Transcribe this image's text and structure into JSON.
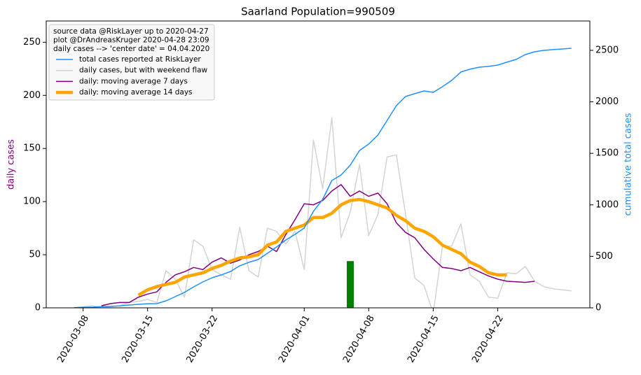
{
  "chart_data": {
    "type": "line",
    "title": "Saarland Population=990509",
    "ylabel": "daily cases",
    "ylabel_color": "#800080",
    "y2label": "cumulative total cases",
    "y2label_color": "#1e90ff",
    "legend_title": [
      "source data @RiskLayer up to 2020-04-27",
      "plot @DrAndreasKruger 2020-04-28 23:09",
      "daily cases --> 'center date' = 04.04.2020"
    ],
    "legend_position": "upper left",
    "xlim": [
      "2020-03-04",
      "2020-05-02"
    ],
    "xticks": [
      "2020-03-08",
      "2020-03-15",
      "2020-03-22",
      "2020-04-01",
      "2020-04-08",
      "2020-04-15",
      "2020-04-22"
    ],
    "ylim": [
      0,
      270
    ],
    "yticks": [
      0,
      50,
      100,
      150,
      200,
      250
    ],
    "y2lim": [
      0,
      2785
    ],
    "y2ticks": [
      0,
      500,
      1000,
      1500,
      2000,
      2500
    ],
    "x": [
      "2020-03-07",
      "2020-03-08",
      "2020-03-09",
      "2020-03-10",
      "2020-03-11",
      "2020-03-12",
      "2020-03-13",
      "2020-03-14",
      "2020-03-15",
      "2020-03-16",
      "2020-03-17",
      "2020-03-18",
      "2020-03-19",
      "2020-03-20",
      "2020-03-21",
      "2020-03-22",
      "2020-03-23",
      "2020-03-24",
      "2020-03-25",
      "2020-03-26",
      "2020-03-27",
      "2020-03-28",
      "2020-03-29",
      "2020-03-30",
      "2020-03-31",
      "2020-04-01",
      "2020-04-02",
      "2020-04-03",
      "2020-04-04",
      "2020-04-05",
      "2020-04-06",
      "2020-04-07",
      "2020-04-08",
      "2020-04-09",
      "2020-04-10",
      "2020-04-11",
      "2020-04-12",
      "2020-04-13",
      "2020-04-14",
      "2020-04-15",
      "2020-04-16",
      "2020-04-17",
      "2020-04-18",
      "2020-04-19",
      "2020-04-20",
      "2020-04-21",
      "2020-04-22",
      "2020-04-23",
      "2020-04-24",
      "2020-04-25",
      "2020-04-26",
      "2020-04-27",
      "2020-04-28",
      "2020-04-29",
      "2020-04-30"
    ],
    "series": [
      {
        "name": "total cases reported at RiskLayer",
        "color": "#1e90ff",
        "linewidth": 1.5,
        "axis": "y2",
        "values": [
          2,
          5,
          7,
          12,
          14,
          20,
          27,
          34,
          40,
          41,
          68,
          109,
          150,
          204,
          251,
          292,
          320,
          353,
          408,
          442,
          469,
          530,
          591,
          659,
          713,
          775,
          937,
          1053,
          1236,
          1290,
          1386,
          1528,
          1590,
          1678,
          1820,
          1963,
          2052,
          2079,
          2106,
          2092,
          2147,
          2208,
          2290,
          2317,
          2337,
          2344,
          2357,
          2385,
          2412,
          2459,
          2486,
          2500,
          2507,
          2513,
          2520
        ]
      },
      {
        "name": "daily cases, but with weekend flaw",
        "color": "#d3d3d3",
        "linewidth": 1.5,
        "values": [
          0,
          1,
          2,
          0,
          1,
          2,
          5,
          6,
          8,
          5,
          35,
          27,
          10,
          64,
          58,
          36,
          31,
          27,
          76,
          35,
          29,
          75,
          72,
          60,
          72,
          36,
          158,
          112,
          179,
          66,
          90,
          135,
          68,
          88,
          142,
          144,
          88,
          28,
          21,
          -5,
          58,
          58,
          79,
          31,
          25,
          10,
          9,
          33,
          32,
          39,
          25,
          20,
          18,
          17,
          16
        ]
      },
      {
        "name": "daily: moving average 7 days",
        "color": "#800080",
        "linewidth": 1.5,
        "values": [
          null,
          null,
          null,
          2,
          4,
          5,
          5,
          10,
          13,
          15,
          24,
          31,
          34,
          38,
          36,
          43,
          47,
          42,
          45,
          50,
          53,
          58,
          53,
          69,
          83,
          98,
          97,
          101,
          110,
          116,
          105,
          110,
          105,
          108,
          98,
          80,
          71,
          66,
          55,
          46,
          38,
          37,
          35,
          38,
          34,
          30,
          27,
          25,
          24.5,
          24,
          25,
          null,
          null,
          null,
          null
        ]
      },
      {
        "name": "daily: moving average 14 days",
        "color": "#ffa500",
        "linewidth": 4.5,
        "values": [
          null,
          null,
          null,
          null,
          null,
          null,
          null,
          12,
          17,
          20,
          22,
          24,
          29,
          31,
          33,
          37,
          40,
          44,
          47,
          48,
          50,
          59,
          62,
          72,
          75,
          78,
          85,
          85,
          89,
          97,
          101,
          102,
          100,
          97,
          94,
          87,
          82,
          75,
          72,
          67,
          59,
          55,
          51,
          43,
          39,
          33,
          31,
          31,
          null,
          null,
          null,
          null,
          null,
          null,
          null
        ]
      }
    ],
    "center_bar": {
      "x": "2020-04-06",
      "value": 44,
      "color": "#008000"
    }
  }
}
